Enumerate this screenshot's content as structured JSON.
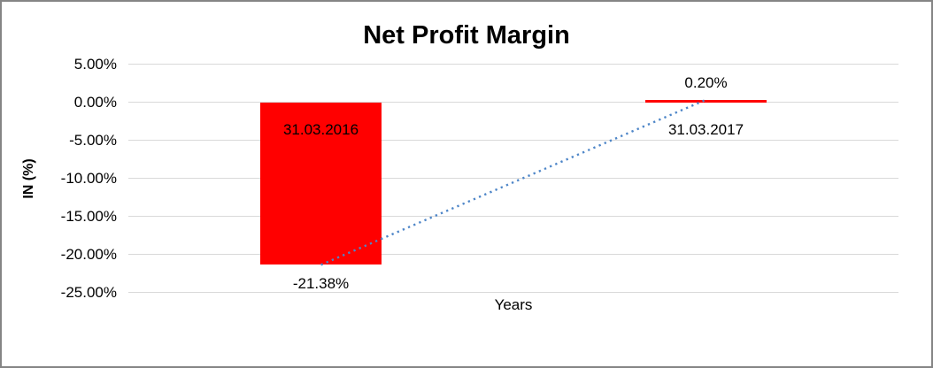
{
  "chart_data": {
    "type": "bar",
    "title": "Net Profit Margin",
    "xlabel": "Years",
    "ylabel": "IN (%)",
    "categories": [
      "31.03.2016",
      "31.03.2017"
    ],
    "values": [
      -21.38,
      0.2
    ],
    "data_labels": [
      "-21.38%",
      "0.20%"
    ],
    "y_ticks": [
      {
        "label": "5.00%",
        "value": 5
      },
      {
        "label": "0.00%",
        "value": 0
      },
      {
        "label": "-5.00%",
        "value": -5
      },
      {
        "label": "-10.00%",
        "value": -10
      },
      {
        "label": "-15.00%",
        "value": -15
      },
      {
        "label": "-20.00%",
        "value": -20
      },
      {
        "label": "-25.00%",
        "value": -25
      }
    ],
    "ylim": [
      -25,
      5
    ],
    "grid": true,
    "legend": "none",
    "colors": {
      "bar": "#ff0000",
      "trendline": "#4e86c8",
      "gridline": "#d9d9d9",
      "text": "#000000"
    },
    "trendline": {
      "type": "linear",
      "style": "dotted",
      "connects": [
        "31.03.2016",
        "31.03.2017"
      ]
    }
  }
}
